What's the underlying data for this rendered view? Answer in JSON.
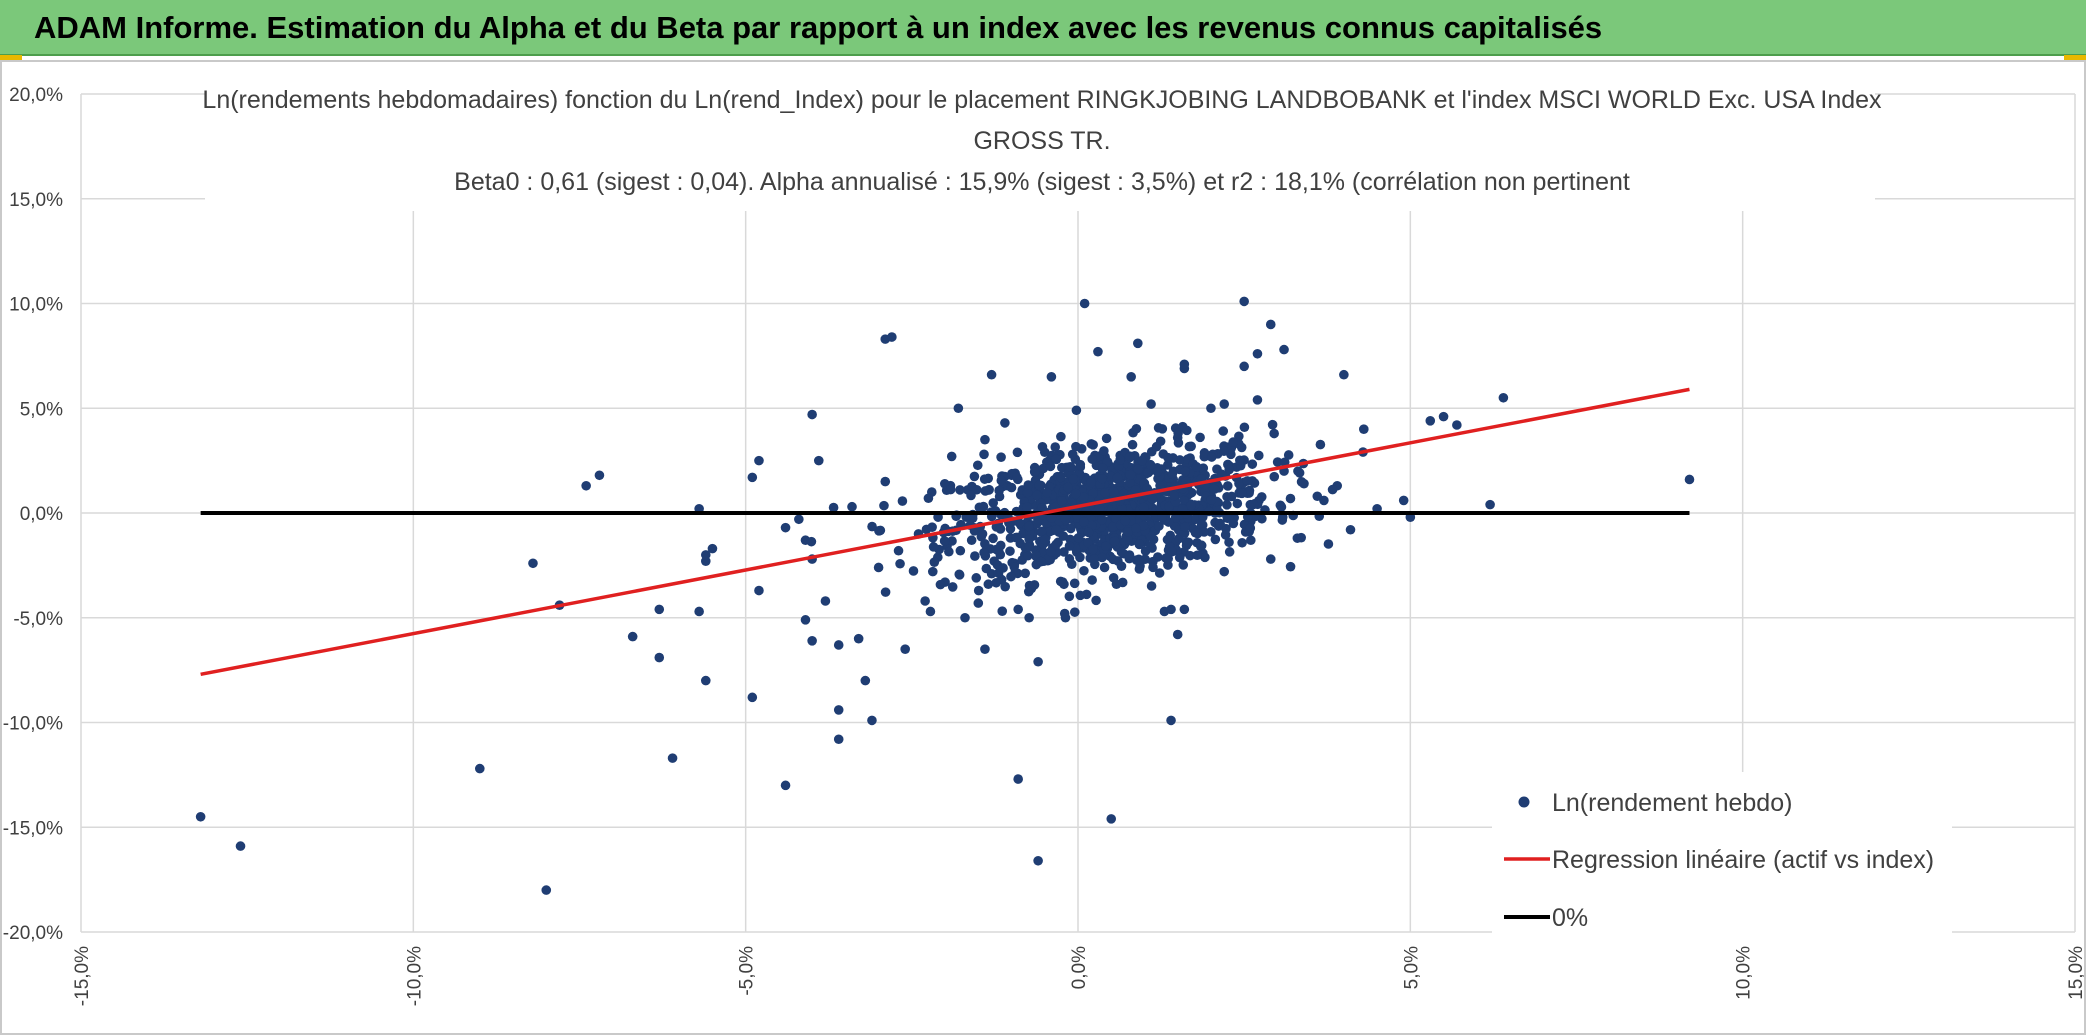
{
  "header": {
    "title": "ADAM Informe. Estimation du Alpha et du Beta par rapport à un index avec les revenus connus capitalisés"
  },
  "colors": {
    "title_bar_bg": "#7bc87a",
    "scatter": "#1f3d73",
    "regression": "#e02020",
    "zero_line": "#000000",
    "grid": "#d9d9d9"
  },
  "chart_data": {
    "type": "scatter",
    "title_lines": [
      "Ln(rendements hebdomadaires) fonction du Ln(rend_Index) pour le placement RINGKJOBING LANDBOBANK et l'index MSCI WORLD Exc. USA Index",
      "GROSS TR.",
      "Beta0 : 0,61 (sigest : 0,04). Alpha annualisé : 15,9% (sigest : 3,5%) et r2 : 18,1% (corrélation non pertinent"
    ],
    "xlabel": "",
    "ylabel": "",
    "xlim": [
      -15,
      15
    ],
    "ylim": [
      -20,
      20
    ],
    "x_ticks": [
      "-15,0%",
      "-10,0%",
      "-5,0%",
      "0,0%",
      "5,0%",
      "10,0%",
      "15,0%"
    ],
    "y_ticks": [
      "20,0%",
      "15,0%",
      "10,0%",
      "5,0%",
      "0,0%",
      "-5,0%",
      "-10,0%",
      "-15,0%",
      "-20,0%"
    ],
    "grid": true,
    "legend_position": "bottom-right",
    "legend": [
      {
        "label": "Ln(rendement hebdo)",
        "kind": "marker"
      },
      {
        "label": "Regression linéaire (actif vs index)",
        "kind": "line"
      },
      {
        "label": "0%",
        "kind": "line"
      }
    ],
    "series": [
      {
        "name": "Ln(rendement hebdo)",
        "kind": "scatter",
        "points": [
          [
            -13.2,
            -14.5
          ],
          [
            -12.6,
            -15.9
          ],
          [
            -9.0,
            -12.2
          ],
          [
            -8.2,
            -2.4
          ],
          [
            -8.0,
            -18.0
          ],
          [
            -7.8,
            -4.4
          ],
          [
            -7.4,
            1.3
          ],
          [
            -7.2,
            1.8
          ],
          [
            -6.7,
            -5.9
          ],
          [
            -6.3,
            -6.9
          ],
          [
            -6.3,
            -4.6
          ],
          [
            -6.1,
            -11.7
          ],
          [
            -5.7,
            -4.7
          ],
          [
            -5.7,
            0.2
          ],
          [
            -5.6,
            -8.0
          ],
          [
            -5.6,
            -2.3
          ],
          [
            -5.6,
            -2.0
          ],
          [
            -5.5,
            -1.7
          ],
          [
            -4.9,
            -8.8
          ],
          [
            -4.9,
            1.7
          ],
          [
            -4.8,
            2.5
          ],
          [
            -4.8,
            -3.7
          ],
          [
            -4.4,
            -13.0
          ],
          [
            -4.4,
            -0.7
          ],
          [
            -4.2,
            -0.3
          ],
          [
            -4.1,
            -1.3
          ],
          [
            -4.1,
            -5.1
          ],
          [
            -4.0,
            4.7
          ],
          [
            -4.0,
            -6.1
          ],
          [
            -3.6,
            -10.8
          ],
          [
            -3.6,
            -9.4
          ],
          [
            -3.2,
            -8.0
          ],
          [
            -3.1,
            -9.9
          ],
          [
            -2.9,
            8.3
          ],
          [
            -2.8,
            8.4
          ],
          [
            -2.6,
            -6.5
          ],
          [
            -3.6,
            -6.3
          ],
          [
            -3.8,
            -4.2
          ],
          [
            -3.3,
            -6.0
          ],
          [
            -4.0,
            -2.2
          ],
          [
            -3.9,
            2.5
          ],
          [
            -3.0,
            -2.6
          ],
          [
            -2.9,
            1.5
          ],
          [
            -2.3,
            -4.2
          ],
          [
            -2.0,
            -3.3
          ],
          [
            -1.8,
            5.0
          ],
          [
            -1.7,
            -5.0
          ],
          [
            -1.5,
            -4.3
          ],
          [
            -1.4,
            -6.5
          ],
          [
            -1.3,
            6.6
          ],
          [
            -1.2,
            -0.5
          ],
          [
            -1.1,
            4.3
          ],
          [
            -1.3,
            -2.9
          ],
          [
            -0.9,
            -4.6
          ],
          [
            -0.9,
            -12.7
          ],
          [
            -0.6,
            -7.1
          ],
          [
            -0.6,
            -16.6
          ],
          [
            -0.4,
            6.5
          ],
          [
            -0.2,
            -4.8
          ],
          [
            0.1,
            10.0
          ],
          [
            0.3,
            7.7
          ],
          [
            0.5,
            -14.6
          ],
          [
            0.9,
            8.1
          ],
          [
            0.8,
            6.5
          ],
          [
            1.1,
            5.2
          ],
          [
            1.3,
            -4.7
          ],
          [
            1.4,
            -4.6
          ],
          [
            1.4,
            -9.9
          ],
          [
            1.6,
            -4.6
          ],
          [
            1.5,
            -5.8
          ],
          [
            1.6,
            6.9
          ],
          [
            1.6,
            7.1
          ],
          [
            2.0,
            5.0
          ],
          [
            2.2,
            5.2
          ],
          [
            2.5,
            10.1
          ],
          [
            2.5,
            7.0
          ],
          [
            2.7,
            7.6
          ],
          [
            2.7,
            5.4
          ],
          [
            2.9,
            9.0
          ],
          [
            3.1,
            7.8
          ],
          [
            2.9,
            -2.2
          ],
          [
            2.6,
            -1.3
          ],
          [
            3.1,
            2.0
          ],
          [
            3.4,
            1.4
          ],
          [
            3.7,
            0.6
          ],
          [
            3.9,
            1.3
          ],
          [
            4.0,
            6.6
          ],
          [
            4.1,
            -0.8
          ],
          [
            4.3,
            4.0
          ],
          [
            4.5,
            0.2
          ],
          [
            4.9,
            0.6
          ],
          [
            5.0,
            -0.2
          ],
          [
            5.3,
            4.4
          ],
          [
            5.5,
            4.6
          ],
          [
            5.7,
            4.2
          ],
          [
            6.2,
            0.4
          ],
          [
            6.4,
            5.5
          ],
          [
            9.2,
            1.6
          ],
          [
            -2.4,
            -1.0
          ],
          [
            -2.2,
            1.0
          ],
          [
            -1.9,
            2.7
          ],
          [
            -1.6,
            -1.3
          ],
          [
            -1.0,
            1.8
          ],
          [
            -0.8,
            -2.0
          ],
          [
            -0.5,
            2.9
          ],
          [
            -0.3,
            -1.4
          ],
          [
            0.2,
            3.3
          ],
          [
            0.4,
            -2.6
          ],
          [
            0.6,
            1.2
          ],
          [
            0.7,
            -1.5
          ],
          [
            1.0,
            2.4
          ],
          [
            1.2,
            -2.1
          ],
          [
            1.8,
            1.7
          ],
          [
            2.0,
            -0.9
          ],
          [
            2.3,
            2.8
          ],
          [
            2.6,
            -0.4
          ],
          [
            3.3,
            -1.2
          ],
          [
            3.6,
            0.8
          ],
          [
            -3.4,
            0.3
          ],
          [
            -2.7,
            -1.8
          ],
          [
            -1.4,
            3.5
          ],
          [
            -0.7,
            -3.6
          ],
          [
            1.5,
            3.6
          ],
          [
            2.2,
            -2.8
          ]
        ],
        "dense_cluster": {
          "x_mean": 0.5,
          "x_sd": 1.2,
          "y_mean": 0.2,
          "y_sd": 1.5,
          "count": 1100
        }
      },
      {
        "name": "Regression linéaire (actif vs index)",
        "kind": "line",
        "points": [
          [
            -13.2,
            -7.7
          ],
          [
            9.2,
            5.9
          ]
        ]
      },
      {
        "name": "0%",
        "kind": "line",
        "points": [
          [
            -13.2,
            0
          ],
          [
            9.2,
            0
          ]
        ]
      }
    ]
  }
}
